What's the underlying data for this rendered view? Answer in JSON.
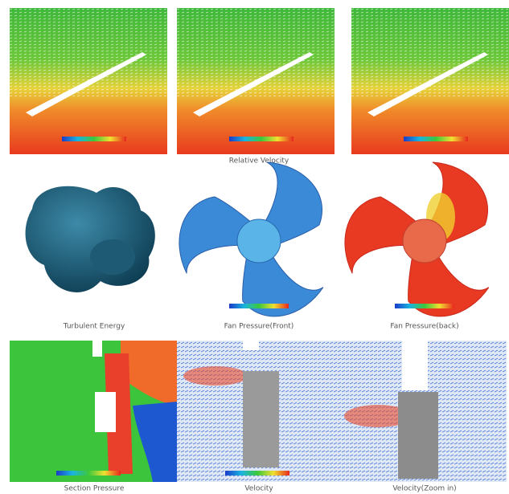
{
  "captions": [
    "Relative Velocity",
    "Turbulent Energy",
    "Fan Pressure(Front)",
    "Fan Pressure(back)",
    "Section Pressure",
    "Velocity",
    "Velocity(Zoom in)"
  ]
}
